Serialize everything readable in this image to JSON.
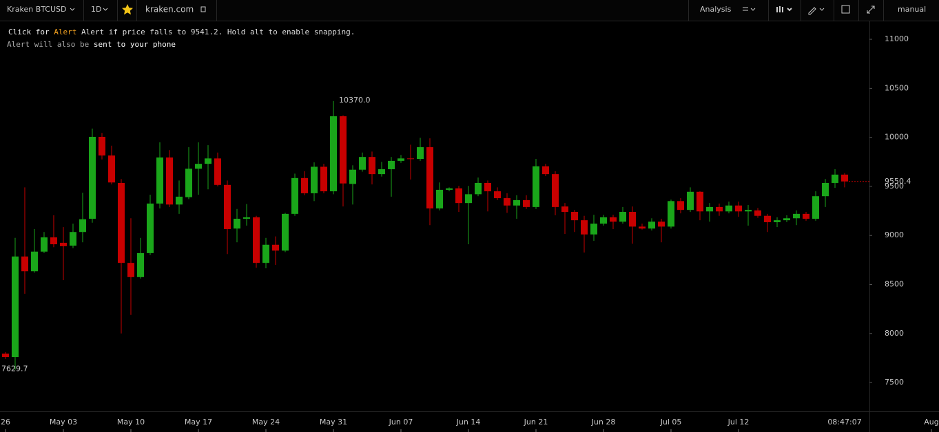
{
  "toolbar": {
    "symbol": "Kraken BTCUSD",
    "interval": "1D",
    "site": "kraken.com",
    "analysis": "Analysis",
    "mode": "manual"
  },
  "alert": {
    "line1": [
      "Click for",
      "Alert",
      "Alert if price falls to 9541.2. Hold alt to enable snapping."
    ],
    "line2": [
      "Alert will also be",
      "sent to your phone"
    ]
  },
  "chart_data": {
    "type": "candlestick",
    "open": [
      7795,
      7760,
      8785,
      8635,
      8835,
      8980,
      8925,
      8895,
      9035,
      9170,
      10005,
      9815,
      9535,
      8720,
      8575,
      8820,
      9325,
      9795,
      9315,
      9390,
      9680,
      9730,
      9785,
      9515,
      9070,
      9170,
      9185,
      8720,
      8905,
      8845,
      9220,
      9585,
      9430,
      9700,
      9450,
      10215,
      9525,
      9670,
      9800,
      9625,
      9675,
      9760,
      9785,
      9780,
      9900,
      9275,
      9465,
      9480,
      9330,
      9420,
      9535,
      9450,
      9380,
      9305,
      9360,
      9290,
      9705,
      9625,
      9295,
      9240,
      9155,
      9010,
      9120,
      9185,
      9140,
      9240,
      9090,
      9070,
      9140,
      9090,
      9350,
      9260,
      9445,
      9245,
      9290,
      9245,
      9305,
      9245,
      9255,
      9200,
      9135,
      9155,
      9175,
      9220,
      9170,
      9400,
      9535,
      9620
    ],
    "high": [
      7810,
      8975,
      9490,
      9065,
      9035,
      9205,
      9085,
      9120,
      9435,
      10090,
      10045,
      9915,
      9575,
      9175,
      8975,
      9415,
      9950,
      9870,
      9560,
      9900,
      9950,
      9920,
      9845,
      9560,
      9270,
      9320,
      9200,
      8975,
      8990,
      9230,
      9630,
      9655,
      9745,
      9730,
      10370,
      10225,
      9715,
      9845,
      9855,
      9750,
      9800,
      9820,
      9925,
      9995,
      9990,
      9540,
      9490,
      9505,
      9505,
      9590,
      9560,
      9490,
      9430,
      9410,
      9410,
      9780,
      9730,
      9655,
      9330,
      9260,
      9200,
      9210,
      9210,
      9210,
      9290,
      9295,
      9120,
      9175,
      9170,
      9365,
      9380,
      9490,
      9450,
      9330,
      9325,
      9345,
      9345,
      9310,
      9280,
      9220,
      9185,
      9205,
      9255,
      9240,
      9450,
      9575,
      9675,
      9635
    ],
    "low": [
      7740,
      7629.7,
      8405,
      8620,
      8820,
      8880,
      8545,
      8870,
      8930,
      9130,
      9775,
      9520,
      8000,
      8190,
      8560,
      8800,
      9275,
      9290,
      9220,
      9370,
      9415,
      9470,
      9500,
      8810,
      8930,
      9100,
      8670,
      8665,
      8700,
      8830,
      9200,
      9410,
      9350,
      9430,
      9420,
      9295,
      9315,
      9650,
      9520,
      9600,
      9395,
      9740,
      9570,
      9760,
      9105,
      9255,
      9450,
      9240,
      8910,
      9400,
      9245,
      9360,
      9230,
      9170,
      9270,
      9270,
      9605,
      9205,
      9015,
      9035,
      8825,
      8945,
      9100,
      9065,
      9120,
      8915,
      9060,
      9050,
      8930,
      9070,
      9225,
      9240,
      9155,
      9140,
      9200,
      9225,
      9190,
      9100,
      9180,
      9035,
      9085,
      9135,
      9105,
      9150,
      9150,
      9290,
      9485,
      9490
    ],
    "close": [
      7760,
      8785,
      8635,
      8835,
      8980,
      8910,
      8890,
      9035,
      9165,
      10005,
      9815,
      9540,
      8720,
      8575,
      8820,
      9325,
      9795,
      9315,
      9395,
      9680,
      9730,
      9785,
      9515,
      9065,
      9170,
      9185,
      8720,
      8905,
      8845,
      9220,
      9585,
      9430,
      9700,
      9450,
      10215,
      9530,
      9670,
      9800,
      9625,
      9675,
      9760,
      9785,
      9780,
      9900,
      9275,
      9465,
      9480,
      9330,
      9420,
      9535,
      9450,
      9380,
      9305,
      9360,
      9290,
      9705,
      9625,
      9290,
      9240,
      9155,
      9010,
      9120,
      9185,
      9140,
      9240,
      9090,
      9070,
      9140,
      9090,
      9350,
      9260,
      9445,
      9245,
      9290,
      9245,
      9305,
      9245,
      9260,
      9200,
      9135,
      9155,
      9175,
      9220,
      9170,
      9400,
      9535,
      9620,
      9550.4
    ],
    "up_color": "#1aa61a",
    "down_color": "#c80000",
    "annotations": [
      {
        "index": 34,
        "label": "10370.0"
      }
    ],
    "low_index": 1,
    "time_label": "08:47:07",
    "ylim": [
      7206,
      11183
    ],
    "yticks": [
      7500,
      8000,
      8500,
      9000,
      9500,
      10000,
      10500,
      11000
    ],
    "xlim": [
      -0.57,
      89.57
    ],
    "xticks": [
      {
        "value": 0,
        "label": "26"
      },
      {
        "value": 6,
        "label": "May 03"
      },
      {
        "value": 13,
        "label": "May 10"
      },
      {
        "value": 20,
        "label": "May 17"
      },
      {
        "value": 27,
        "label": "May 24"
      },
      {
        "value": 34,
        "label": "May 31"
      },
      {
        "value": 41,
        "label": "Jun 07"
      },
      {
        "value": 48,
        "label": "Jun 14"
      },
      {
        "value": 55,
        "label": "Jun 21"
      },
      {
        "value": 62,
        "label": "Jun 28"
      },
      {
        "value": 69,
        "label": "Jul 05"
      },
      {
        "value": 76,
        "label": "Jul 12"
      },
      {
        "value": 96,
        "label": "Aug"
      }
    ]
  }
}
